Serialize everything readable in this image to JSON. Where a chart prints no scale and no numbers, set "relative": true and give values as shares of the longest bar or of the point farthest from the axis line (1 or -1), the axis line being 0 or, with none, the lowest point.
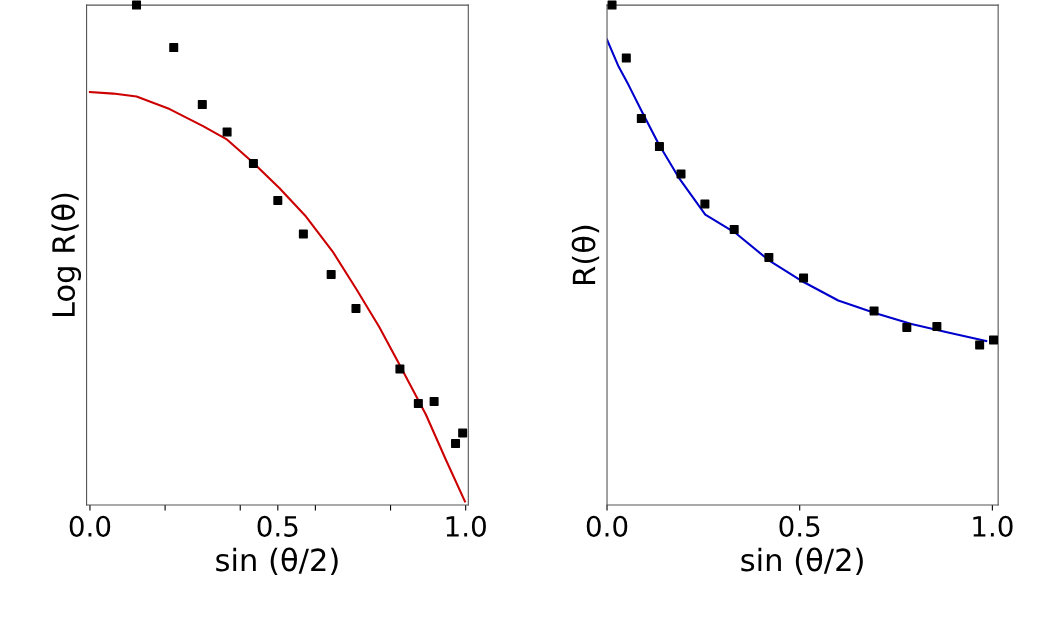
{
  "chart_data": [
    {
      "type": "scatter",
      "relative": true,
      "ylabel": "Log R(θ)",
      "xlabel": "sin (θ/2)",
      "xlim": [
        -0.009,
        1.007
      ],
      "xticks": [
        {
          "value": 0,
          "label": "0.0"
        },
        {
          "value": 0.2,
          "label": null
        },
        {
          "value": 0.4,
          "label": null
        },
        {
          "value": 0.5,
          "label": "0.5"
        },
        {
          "value": 0.6,
          "label": null
        },
        {
          "value": 0.8,
          "label": null
        },
        {
          "value": 1.0,
          "label": "1.0"
        }
      ],
      "grid": false,
      "legend": false,
      "series": [
        {
          "marker": "square",
          "color": "#000000",
          "x": [
            0.124,
            0.223,
            0.299,
            0.365,
            0.435,
            0.5,
            0.568,
            0.642,
            0.708,
            0.825,
            0.874,
            0.916,
            0.973,
            0.992
          ],
          "values": [
            1.0,
            0.915,
            0.801,
            0.746,
            0.683,
            0.609,
            0.542,
            0.461,
            0.393,
            0.272,
            0.203,
            0.207,
            0.123,
            0.144
          ]
        },
        {
          "type": "line",
          "marker": "none",
          "color": "#cc0000",
          "x": [
            0,
            0.062,
            0.124,
            0.212,
            0.301,
            0.363,
            0.434,
            0.504,
            0.575,
            0.646,
            0.708,
            0.77,
            0.823,
            0.894,
            0.947,
            0.998
          ],
          "values": [
            0.826,
            0.823,
            0.817,
            0.792,
            0.758,
            0.732,
            0.685,
            0.634,
            0.577,
            0.507,
            0.433,
            0.356,
            0.282,
            0.181,
            0.091,
            0.007
          ]
        }
      ]
    },
    {
      "type": "scatter",
      "relative": true,
      "ylabel": "R(θ)",
      "xlabel": "sin (θ/2)",
      "xlim": [
        0,
        1.015
      ],
      "xticks": [
        {
          "value": 0,
          "label": "0.0"
        },
        {
          "value": 0.5,
          "label": "0.5"
        },
        {
          "value": 1.0,
          "label": "1.0"
        }
      ],
      "grid": false,
      "legend": false,
      "series": [
        {
          "marker": "square",
          "color": "#000000",
          "x": [
            0.013,
            0.05,
            0.089,
            0.136,
            0.192,
            0.254,
            0.33,
            0.42,
            0.51,
            0.693,
            0.778,
            0.856,
            0.967,
            1.003
          ],
          "values": [
            1.0,
            0.894,
            0.773,
            0.717,
            0.662,
            0.602,
            0.551,
            0.495,
            0.454,
            0.388,
            0.355,
            0.357,
            0.32,
            0.33
          ]
        },
        {
          "type": "line",
          "marker": "none",
          "color": "#0000cc",
          "x": [
            0,
            0.03,
            0.056,
            0.091,
            0.134,
            0.186,
            0.255,
            0.332,
            0.419,
            0.51,
            0.6,
            0.695,
            0.79,
            0.885,
            0.984
          ],
          "values": [
            0.931,
            0.877,
            0.84,
            0.786,
            0.722,
            0.655,
            0.581,
            0.545,
            0.49,
            0.446,
            0.409,
            0.384,
            0.362,
            0.345,
            0.328
          ]
        }
      ]
    }
  ]
}
